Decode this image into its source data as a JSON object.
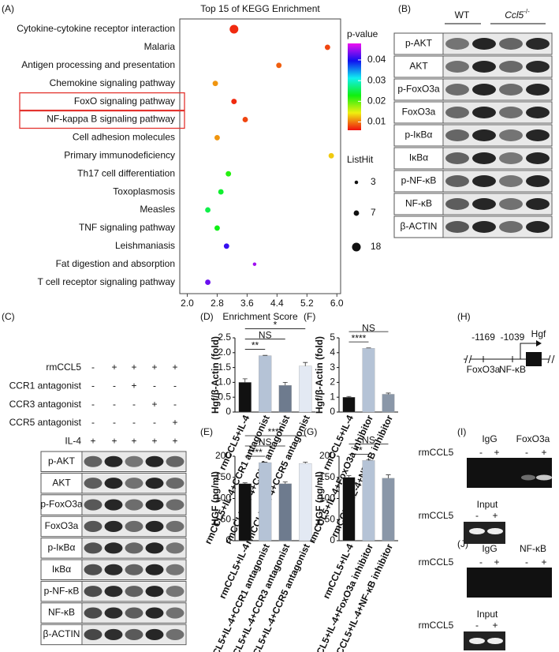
{
  "panel_labels": [
    "(A)",
    "(B)",
    "(C)",
    "(D)",
    "(E)",
    "(F)",
    "(G)",
    "(H)",
    "(I)",
    "(J)"
  ],
  "chart_data": [
    {
      "type": "dot",
      "title": "Top 15 of KEGG Enrichment",
      "categories": [
        "Cytokine-cytokine receptor interaction",
        "Malaria",
        "Antigen processing and presentation",
        "Chemokine signaling pathway",
        "FoxO signaling pathway",
        "NF-kappa B signaling pathway",
        "Cell adhesion molecules",
        "Primary immunodeficiency",
        "Th17 cell differentiation",
        "Toxoplasmosis",
        "Measles",
        "TNF signaling pathway",
        "Leishmaniasis",
        "Fat digestion and absorption",
        "T cell receptor signaling pathway"
      ],
      "values": [
        3.25,
        5.75,
        4.45,
        2.75,
        3.25,
        3.55,
        2.8,
        5.85,
        3.1,
        2.9,
        2.55,
        2.8,
        3.05,
        3.8,
        2.55
      ],
      "sizes": [
        18,
        7,
        7,
        7,
        7,
        7,
        7,
        7,
        7,
        7,
        7,
        7,
        7,
        3,
        7
      ],
      "pvalues": [
        0.007,
        0.008,
        0.009,
        0.011,
        0.007,
        0.008,
        0.011,
        0.013,
        0.022,
        0.024,
        0.025,
        0.023,
        0.041,
        0.045,
        0.043
      ],
      "xlabel": "Enrichment Score",
      "xlim": [
        1.8,
        6.1
      ],
      "xticks": [
        {
          "value": 2,
          "label": "2.0"
        },
        2.8,
        3.6,
        4.4,
        5.2,
        {
          "value": 6,
          "label": "6.0"
        }
      ],
      "color_title": "p-value",
      "clim": [
        0.006,
        0.048
      ],
      "cticks": [
        0.01,
        0.02,
        0.03,
        0.04
      ],
      "size_title": "ListHit",
      "size_legend": [
        3,
        7,
        18
      ],
      "highlighted": [
        4,
        5
      ],
      "highlight_color": "#e3342f"
    },
    {
      "type": "bar",
      "ylabel": "Hgf/β-Actin (fold)",
      "categories": [
        "rmCCL5+IL-4",
        "rmCCL5+IL-4+CCR1 antagonist",
        "rmCCL5+IL-4+CCR3 antagonist",
        "rmCCL5+IL-4+CCR5 antagonist"
      ],
      "values": [
        1.0,
        1.9,
        0.9,
        1.55
      ],
      "errors": [
        0.12,
        0.01,
        0.1,
        0.12
      ],
      "colors": [
        "#111111",
        "#b5c3d6",
        "#6e7b8e",
        "#e3e9f3"
      ],
      "ylim": [
        0,
        2.5
      ],
      "yticks": [
        0,
        0.5,
        {
          "value": 1,
          "label": "1.0"
        },
        1.5,
        {
          "value": 2,
          "label": "2.0"
        },
        2.5
      ],
      "annotations": [
        "**",
        "NS",
        "*"
      ]
    },
    {
      "type": "bar",
      "ylabel": "HGF (pg/ml)",
      "categories": [
        "rmCCL5+IL-4",
        "rmCCL5+IL-4+CCR1 antagonist",
        "rmCCL5+IL-4+CCR3 antagonist",
        "rmCCL5+IL-4+CCR5 antagonist"
      ],
      "values": [
        135,
        185,
        135,
        183
      ],
      "errors": [
        2,
        1,
        4,
        3
      ],
      "colors": [
        "#111111",
        "#b5c3d6",
        "#6e7b8e",
        "#e3e9f3"
      ],
      "ylim": [
        0,
        200
      ],
      "yticks": [
        0,
        50,
        100,
        150,
        200
      ],
      "annotations": [
        "****",
        "NS",
        "****"
      ]
    },
    {
      "type": "bar",
      "ylabel": "Hgf/β-Actin (fold)",
      "categories": [
        "rmCCL5+IL-4",
        "rmCCL5+IL-4+FoxO3a inhibitor",
        "rmCCL5+IL-4+NF-κB inhibitor"
      ],
      "values": [
        1.0,
        4.3,
        1.2
      ],
      "errors": [
        0.05,
        0.02,
        0.08
      ],
      "colors": [
        "#111111",
        "#b5c3d6",
        "#8a97a8"
      ],
      "ylim": [
        0,
        5
      ],
      "yticks": [
        0,
        1,
        2,
        3,
        4,
        5
      ],
      "annotations": [
        "****",
        "NS"
      ]
    },
    {
      "type": "bar",
      "ylabel": "HGF (pg/ml)",
      "categories": [
        "rmCCL5+IL-4",
        "rmCCL5+IL-4+FoxO3a inhibitor",
        "rmCCL5+IL-4+NF-κB inhibitor"
      ],
      "values": [
        150,
        190,
        148
      ],
      "errors": [
        4,
        2,
        8
      ],
      "colors": [
        "#111111",
        "#b5c3d6",
        "#8a97a8"
      ],
      "ylim": [
        0,
        200
      ],
      "yticks": [
        0,
        50,
        100,
        150,
        200
      ],
      "annotations": [
        "**",
        "NS"
      ]
    }
  ],
  "blot_B": {
    "groups": [
      "WT",
      "Ccl5"
    ],
    "group_superscript": "-/-",
    "rows": [
      "p-AKT",
      "AKT",
      "p-FoxO3a",
      "FoxO3a",
      "p-IκBα",
      "IκBα",
      "p-NF-κB",
      "NF-κB",
      "β-ACTIN"
    ]
  },
  "panel_C": {
    "treatments": [
      {
        "label": "rmCCL5",
        "signs": [
          "-",
          "+",
          "+",
          "+",
          "+"
        ]
      },
      {
        "label": "CCR1 antagonist",
        "signs": [
          "-",
          "-",
          "+",
          "-",
          "-"
        ]
      },
      {
        "label": "CCR3 antagonist",
        "signs": [
          "-",
          "-",
          "-",
          "+",
          "-"
        ]
      },
      {
        "label": "CCR5 antagonist",
        "signs": [
          "-",
          "-",
          "-",
          "-",
          "+"
        ]
      },
      {
        "label": "IL-4",
        "signs": [
          "+",
          "+",
          "+",
          "+",
          "+"
        ]
      }
    ],
    "rows": [
      "p-AKT",
      "AKT",
      "p-FoxO3a",
      "FoxO3a",
      "p-IκBα",
      "IκBα",
      "p-NF-κB",
      "NF-κB",
      "β-ACTIN"
    ]
  },
  "panel_H": {
    "positions": [
      "-1169",
      "-1039"
    ],
    "sites": [
      "FoxO3a",
      "NF-κB"
    ],
    "gene": "Hgf"
  },
  "panel_I": {
    "antibodies": [
      "IgG",
      "FoxO3a"
    ],
    "treatment": "rmCCL5",
    "signs": [
      "-",
      "+",
      "-",
      "+"
    ],
    "input": "Input",
    "input_treatment": "rmCCL5",
    "input_signs": [
      "-",
      "+"
    ]
  },
  "panel_J": {
    "antibodies": [
      "IgG",
      "NF-κB"
    ],
    "treatment": "rmCCL5",
    "signs": [
      "-",
      "+",
      "-",
      "+"
    ],
    "input": "Input",
    "input_treatment": "rmCCL5",
    "input_signs": [
      "-",
      "+"
    ]
  }
}
